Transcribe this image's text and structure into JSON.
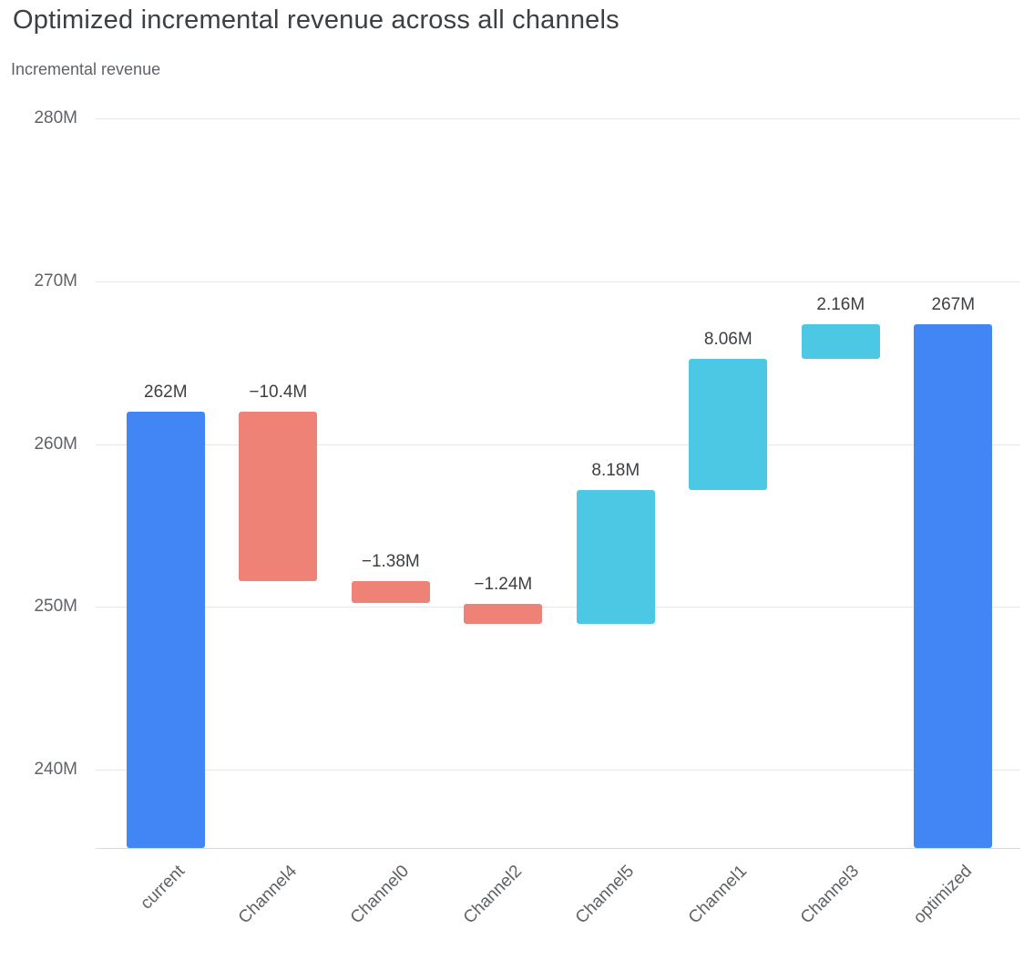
{
  "header": {
    "title": "Optimized incremental revenue across all channels",
    "subtitle": "Incremental revenue"
  },
  "chart_data": {
    "type": "bar",
    "subtype": "waterfall",
    "title": "Optimized incremental revenue across all channels",
    "ylabel": "Incremental revenue",
    "xlabel": "",
    "categories": [
      "current",
      "Channel4",
      "Channel0",
      "Channel2",
      "Channel5",
      "Channel1",
      "Channel3",
      "optimized"
    ],
    "values": [
      262,
      -10.4,
      -1.38,
      -1.24,
      8.18,
      8.06,
      2.16,
      267
    ],
    "bars": [
      {
        "category": "current",
        "kind": "total",
        "display": "262M",
        "start": 0,
        "end": 262
      },
      {
        "category": "Channel4",
        "kind": "decrease",
        "display": "−10.4M",
        "start": 262,
        "end": 251.6
      },
      {
        "category": "Channel0",
        "kind": "decrease",
        "display": "−1.38M",
        "start": 251.6,
        "end": 250.22
      },
      {
        "category": "Channel2",
        "kind": "decrease",
        "display": "−1.24M",
        "start": 250.22,
        "end": 248.98
      },
      {
        "category": "Channel5",
        "kind": "increase",
        "display": "8.18M",
        "start": 248.98,
        "end": 257.16
      },
      {
        "category": "Channel1",
        "kind": "increase",
        "display": "8.06M",
        "start": 257.16,
        "end": 265.22
      },
      {
        "category": "Channel3",
        "kind": "increase",
        "display": "2.16M",
        "start": 265.22,
        "end": 267.38
      },
      {
        "category": "optimized",
        "kind": "total",
        "display": "267M",
        "start": 0,
        "end": 267.38
      }
    ],
    "yticks": [
      {
        "value": 240,
        "label": "240M"
      },
      {
        "value": 250,
        "label": "250M"
      },
      {
        "value": 260,
        "label": "260M"
      },
      {
        "value": 270,
        "label": "270M"
      },
      {
        "value": 280,
        "label": "280M"
      }
    ],
    "ylim": [
      235.2,
      280
    ],
    "grid": "horizontal",
    "legend": "none",
    "colors": {
      "total": "#4285f4",
      "decrease": "#ee8276",
      "increase": "#4cc8e4"
    }
  }
}
